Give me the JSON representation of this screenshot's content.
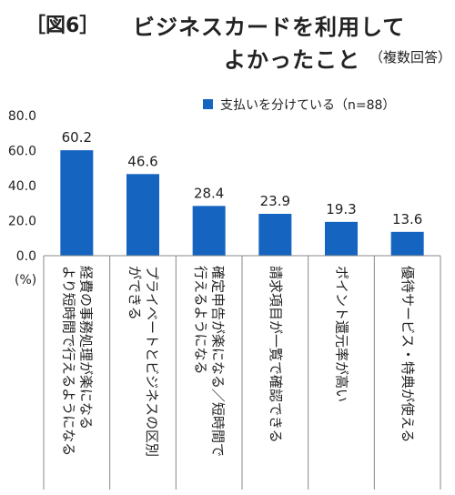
{
  "figure_label": "［図6］",
  "title_line1": "ビジネスカードを利用して",
  "title_line2": "よかったこと",
  "title_note": "（複数回答）",
  "chart_data": {
    "type": "bar",
    "title": "ビジネスカードを利用してよかったこと",
    "ylabel": "(%)",
    "ylim": [
      0,
      80
    ],
    "yticks": [
      "0.0",
      "20.0",
      "40.0",
      "60.0",
      "80.0"
    ],
    "legend": "top-right",
    "grid": false,
    "series": [
      {
        "name": "支払いを分けている（n=88）",
        "color": "#1565c0",
        "values": [
          60.2,
          46.6,
          28.4,
          23.9,
          19.3,
          13.6
        ],
        "value_labels": [
          "60.2",
          "46.6",
          "28.4",
          "23.9",
          "19.3",
          "13.6"
        ]
      }
    ],
    "categories": [
      "経費の事務処理が楽になる|より短時間で行えるようになる",
      "プライベートとビジネスの区別|ができる",
      "確定申告が楽になる／短時間で|行えるようになる",
      "請求項目が一覧で確認できる",
      "ポイント還元率が高い",
      "優待サービス・特典が使える"
    ]
  }
}
